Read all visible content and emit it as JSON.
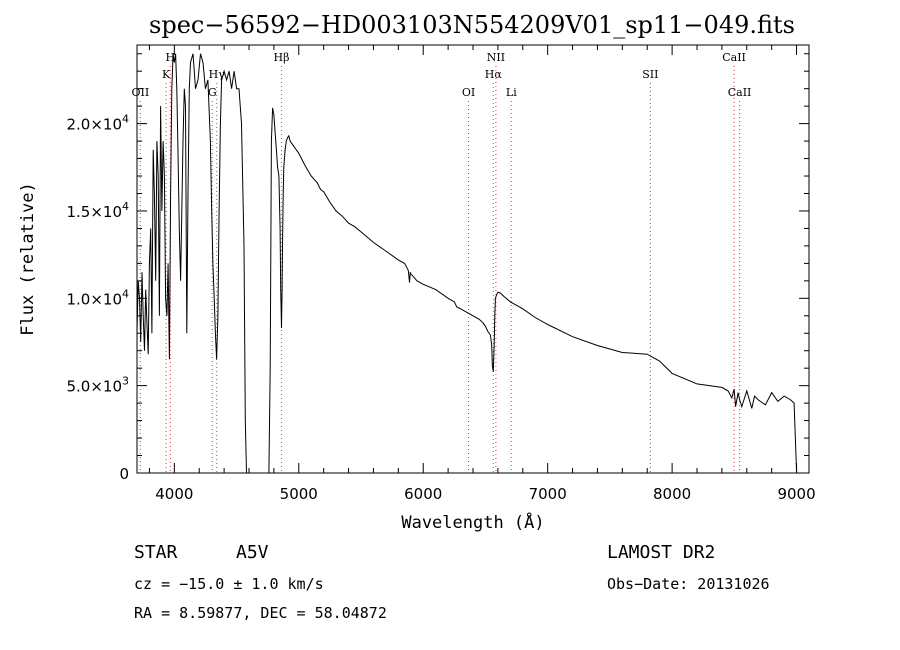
{
  "chart_data": {
    "type": "line",
    "title": "spec−56592−HD003103N554209V01_sp11−049.fits",
    "xlabel": "Wavelength (Å)",
    "ylabel": "Flux (relative)",
    "xlim": [
      3700,
      9100
    ],
    "ylim": [
      0,
      24500
    ],
    "x_ticks": [
      4000,
      5000,
      6000,
      7000,
      8000,
      9000
    ],
    "y_ticks": [
      {
        "value": 0,
        "label": "0",
        "mantissa": "",
        "exp": ""
      },
      {
        "value": 5000,
        "label": "",
        "mantissa": "5.0×10",
        "exp": "3"
      },
      {
        "value": 10000,
        "label": "",
        "mantissa": "1.0×10",
        "exp": "4"
      },
      {
        "value": 15000,
        "label": "",
        "mantissa": "1.5×10",
        "exp": "4"
      },
      {
        "value": 20000,
        "label": "",
        "mantissa": "2.0×10",
        "exp": "4"
      }
    ],
    "grid": false,
    "series": [
      {
        "x": [
          3700,
          3710,
          3720,
          3730,
          3740,
          3750,
          3760,
          3770,
          3780,
          3790,
          3800,
          3810,
          3820,
          3830,
          3840,
          3850,
          3860,
          3870,
          3880,
          3890,
          3900,
          3910,
          3920,
          3930,
          3940,
          3950,
          3960,
          3970,
          3980,
          3990,
          4000,
          4010,
          4020,
          4030,
          4040,
          4050,
          4060,
          4070,
          4080,
          4090,
          4100,
          4110,
          4120,
          4130,
          4150,
          4170,
          4190,
          4210,
          4230,
          4250,
          4270,
          4290,
          4300,
          4310,
          4320,
          4330,
          4340,
          4350,
          4360,
          4370,
          4380,
          4400,
          4420,
          4440,
          4460,
          4480,
          4500,
          4520,
          4540,
          4560,
          4570,
          4580,
          4590,
          4600,
          4700,
          4760,
          4770,
          4780,
          4790,
          4800,
          4810,
          4820,
          4830,
          4840,
          4850,
          4855,
          4861,
          4866,
          4870,
          4875,
          4880,
          4890,
          4900,
          4910,
          4920,
          4930,
          4940,
          4950,
          4960,
          4980,
          5000,
          5050,
          5100,
          5150,
          5170,
          5180,
          5200,
          5250,
          5300,
          5350,
          5400,
          5450,
          5500,
          5600,
          5700,
          5800,
          5850,
          5880,
          5890,
          5896,
          5900,
          5950,
          6000,
          6100,
          6200,
          6250,
          6270,
          6300,
          6350,
          6400,
          6450,
          6480,
          6500,
          6520,
          6540,
          6550,
          6556,
          6563,
          6570,
          6575,
          6580,
          6590,
          6600,
          6620,
          6650,
          6700,
          6800,
          6900,
          7000,
          7200,
          7400,
          7600,
          7800,
          7850,
          7900,
          8000,
          8200,
          8400,
          8450,
          8480,
          8498,
          8510,
          8530,
          8542,
          8560,
          8600,
          8640,
          8662,
          8690,
          8750,
          8800,
          8850,
          8900,
          8950,
          8980,
          9000
        ],
        "y": [
          8000,
          11000,
          10000,
          7500,
          11500,
          9000,
          7000,
          10500,
          8500,
          6800,
          12000,
          14000,
          8000,
          18500,
          16000,
          11000,
          19000,
          17000,
          9000,
          21000,
          15000,
          19000,
          17000,
          10000,
          9000,
          12000,
          6500,
          16000,
          22000,
          24000,
          23500,
          24000,
          22000,
          18000,
          14000,
          11000,
          15000,
          19000,
          22000,
          21000,
          8000,
          16000,
          22000,
          23500,
          24000,
          22000,
          22500,
          24000,
          23500,
          22000,
          22500,
          19000,
          15000,
          12000,
          10000,
          8000,
          6500,
          9000,
          15000,
          20000,
          22500,
          23000,
          22500,
          23000,
          22000,
          23000,
          22000,
          22000,
          20000,
          13000,
          3000,
          0,
          0,
          0,
          0,
          0,
          6000,
          19000,
          20900,
          20500,
          19500,
          18500,
          17500,
          17000,
          14000,
          10500,
          8300,
          10500,
          13500,
          16000,
          17500,
          18500,
          19000,
          19200,
          19300,
          19000,
          18900,
          18800,
          18700,
          18500,
          18300,
          17600,
          17000,
          16600,
          16300,
          16200,
          16100,
          15500,
          15000,
          14700,
          14300,
          14100,
          13800,
          13200,
          12700,
          12200,
          12000,
          11600,
          10900,
          11500,
          11400,
          11000,
          10800,
          10500,
          10000,
          9800,
          9500,
          9400,
          9200,
          9000,
          8800,
          8600,
          8400,
          8100,
          7900,
          7300,
          6100,
          5800,
          7400,
          9000,
          10000,
          10200,
          10350,
          10300,
          10100,
          9800,
          9400,
          8900,
          8500,
          7800,
          7300,
          6900,
          6800,
          6600,
          6400,
          5700,
          5100,
          4900,
          4700,
          4300,
          4800,
          3800,
          4600,
          4200,
          3800,
          4700,
          3700,
          4400,
          4200,
          3900,
          4600,
          4100,
          4400,
          4200,
          4000,
          0
        ]
      }
    ],
    "lines": [
      {
        "name": "OII",
        "wl": 3727,
        "row": 3
      },
      {
        "name": "K",
        "wl": 3934,
        "row": 2
      },
      {
        "name": "H",
        "wl": 3968,
        "row": 1
      },
      {
        "name": "G",
        "wl": 4305,
        "row": 3
      },
      {
        "name": "Hγ",
        "wl": 4341,
        "row": 2
      },
      {
        "name": "Hβ",
        "wl": 4861,
        "row": 1
      },
      {
        "name": "OI",
        "wl": 6364,
        "row": 3
      },
      {
        "name": "Hα",
        "wl": 6563,
        "row": 2
      },
      {
        "name": "NII",
        "wl": 6584,
        "row": 1
      },
      {
        "name": "Li",
        "wl": 6708,
        "row": 3
      },
      {
        "name": "SII",
        "wl": 7825,
        "row": 2
      },
      {
        "name": "CaII",
        "wl": 8498,
        "row": 1
      },
      {
        "name": "CaII",
        "wl": 8542,
        "row": 3
      }
    ]
  },
  "info": {
    "object_class": "STAR",
    "subclass": "A5V",
    "survey": "LAMOST DR2",
    "redshift": "cz = −15.0 ± 1.0 km/s",
    "obs_date": "Obs−Date: 20131026",
    "coords": "RA =   8.59877, DEC =  58.04872"
  },
  "colors": {
    "axis": "#000000",
    "spectrum": "#000000",
    "line_marker": "#d04040"
  }
}
